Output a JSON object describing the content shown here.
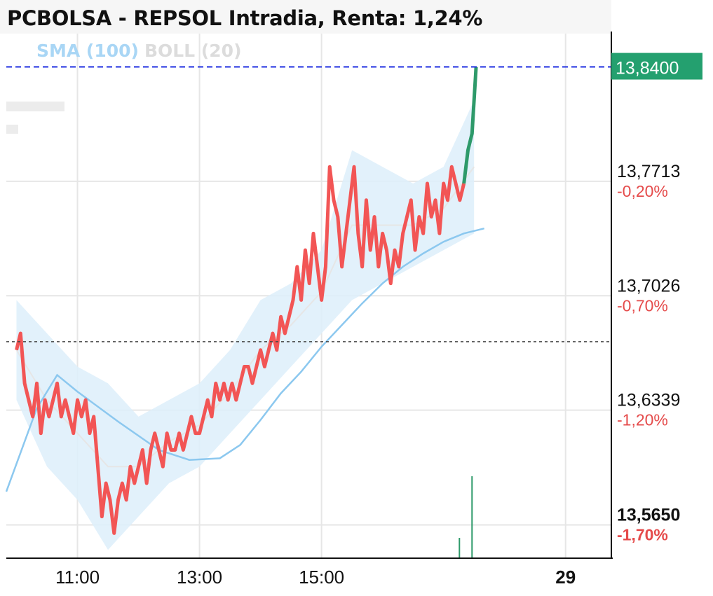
{
  "title": "PCBOLSA - REPSOL Intradia, Renta: 1,24%",
  "indicators": {
    "sma": "SMA (100)",
    "boll": "BOLL (20)"
  },
  "colors": {
    "price_line": "#f25555",
    "price_up_segment": "#2e9a6a",
    "sma_line": "#8cc8ef",
    "bollinger_fill": "#ddeefa",
    "bollinger_mid": "#e6e6e6",
    "last_price_line": "#1f2fe0",
    "last_price_badge": "#24a06f",
    "pct_negative": "#e54b4b",
    "grid": "#e6e6e6"
  },
  "chart_data": {
    "type": "line",
    "title": "PCBOLSA - REPSOL Intradia, Renta: 1,24%",
    "x_ticks": [
      "11:00",
      "13:00",
      "15:00",
      "29"
    ],
    "y_ticks": [
      {
        "price": "13,7713",
        "pct": "-0,20%"
      },
      {
        "price": "13,7026",
        "pct": "-0,70%"
      },
      {
        "price": "13,6339",
        "pct": "-1,20%"
      },
      {
        "price": "13,5650",
        "pct": "-1,70%"
      }
    ],
    "last_price": "13,8400",
    "reference_price": 13.675,
    "ylim": [
      13.545,
      13.86
    ],
    "x_range": [
      "09:50",
      "19:45"
    ],
    "legend": [
      "SMA (100)",
      "BOLL (20)"
    ],
    "series": [
      {
        "name": "REPSOL",
        "x": [
          "10:00",
          "10:04",
          "10:08",
          "10:12",
          "10:16",
          "10:20",
          "10:24",
          "10:28",
          "10:32",
          "10:36",
          "10:40",
          "10:44",
          "10:48",
          "10:52",
          "10:56",
          "11:00",
          "11:04",
          "11:08",
          "11:12",
          "11:16",
          "11:20",
          "11:24",
          "11:28",
          "11:32",
          "11:36",
          "11:40",
          "11:44",
          "11:48",
          "11:52",
          "11:56",
          "12:00",
          "12:04",
          "12:08",
          "12:12",
          "12:16",
          "12:20",
          "12:24",
          "12:28",
          "12:32",
          "12:36",
          "12:40",
          "12:44",
          "12:48",
          "12:52",
          "12:56",
          "13:00",
          "13:04",
          "13:08",
          "13:12",
          "13:16",
          "13:20",
          "13:24",
          "13:28",
          "13:32",
          "13:36",
          "13:40",
          "13:44",
          "13:48",
          "13:52",
          "13:56",
          "14:00",
          "14:04",
          "14:08",
          "14:12",
          "14:16",
          "14:20",
          "14:24",
          "14:28",
          "14:32",
          "14:36",
          "14:40",
          "14:44",
          "14:48",
          "14:52",
          "14:56",
          "15:00",
          "15:04",
          "15:08",
          "15:12",
          "15:16",
          "15:20",
          "15:24",
          "15:28",
          "15:32",
          "15:36",
          "15:40",
          "15:44",
          "15:48",
          "15:52",
          "15:56",
          "16:00",
          "16:04",
          "16:08",
          "16:12",
          "16:16",
          "16:20",
          "16:24",
          "16:28",
          "16:32",
          "16:36",
          "16:40",
          "16:44",
          "16:48",
          "16:52",
          "16:56",
          "17:00",
          "17:04",
          "17:08",
          "17:12",
          "17:16",
          "17:20",
          "17:24",
          "17:28",
          "17:32"
        ],
        "values": [
          13.67,
          13.68,
          13.65,
          13.64,
          13.63,
          13.65,
          13.62,
          13.64,
          13.63,
          13.64,
          13.65,
          13.63,
          13.64,
          13.63,
          13.62,
          13.64,
          13.63,
          13.64,
          13.62,
          13.63,
          13.6,
          13.57,
          13.59,
          13.58,
          13.56,
          13.58,
          13.59,
          13.58,
          13.6,
          13.59,
          13.6,
          13.61,
          13.59,
          13.61,
          13.62,
          13.61,
          13.6,
          13.62,
          13.61,
          13.61,
          13.62,
          13.61,
          13.62,
          13.63,
          13.62,
          13.62,
          13.63,
          13.64,
          13.63,
          13.65,
          13.64,
          13.65,
          13.64,
          13.65,
          13.64,
          13.65,
          13.66,
          13.66,
          13.65,
          13.66,
          13.67,
          13.66,
          13.67,
          13.68,
          13.67,
          13.69,
          13.68,
          13.69,
          13.7,
          13.72,
          13.7,
          13.73,
          13.71,
          13.74,
          13.72,
          13.7,
          13.72,
          13.78,
          13.76,
          13.75,
          13.72,
          13.74,
          13.76,
          13.78,
          13.74,
          13.72,
          13.76,
          13.73,
          13.75,
          13.72,
          13.74,
          13.73,
          13.71,
          13.73,
          13.72,
          13.74,
          13.75,
          13.76,
          13.73,
          13.75,
          13.74,
          13.77,
          13.75,
          13.76,
          13.74,
          13.77,
          13.76,
          13.78,
          13.77,
          13.76,
          13.77,
          13.79,
          13.8,
          13.84
        ]
      },
      {
        "name": "SMA (100)",
        "x": [
          "09:50",
          "10:20",
          "10:40",
          "11:00",
          "11:40",
          "12:20",
          "12:50",
          "13:20",
          "13:40",
          "14:00",
          "14:20",
          "14:40",
          "15:00",
          "15:20",
          "15:40",
          "16:00",
          "16:20",
          "16:40",
          "17:00",
          "17:20",
          "17:40"
        ],
        "values": [
          13.585,
          13.635,
          13.655,
          13.645,
          13.627,
          13.61,
          13.604,
          13.605,
          13.613,
          13.628,
          13.644,
          13.657,
          13.672,
          13.685,
          13.698,
          13.71,
          13.72,
          13.728,
          13.735,
          13.74,
          13.743
        ]
      }
    ],
    "bollinger_band": {
      "name": "BOLL (20)",
      "x": [
        "10:00",
        "10:30",
        "11:00",
        "11:30",
        "12:00",
        "12:30",
        "13:00",
        "13:30",
        "14:00",
        "14:30",
        "15:00",
        "15:30",
        "16:00",
        "16:30",
        "17:00",
        "17:30"
      ],
      "upper": [
        13.7,
        13.68,
        13.66,
        13.65,
        13.63,
        13.64,
        13.65,
        13.67,
        13.7,
        13.71,
        13.73,
        13.79,
        13.78,
        13.77,
        13.78,
        13.82
      ],
      "lower": [
        13.64,
        13.6,
        13.58,
        13.55,
        13.57,
        13.59,
        13.6,
        13.62,
        13.64,
        13.66,
        13.68,
        13.7,
        13.71,
        13.72,
        13.73,
        13.74
      ]
    },
    "volume_note_x": "17:28"
  }
}
